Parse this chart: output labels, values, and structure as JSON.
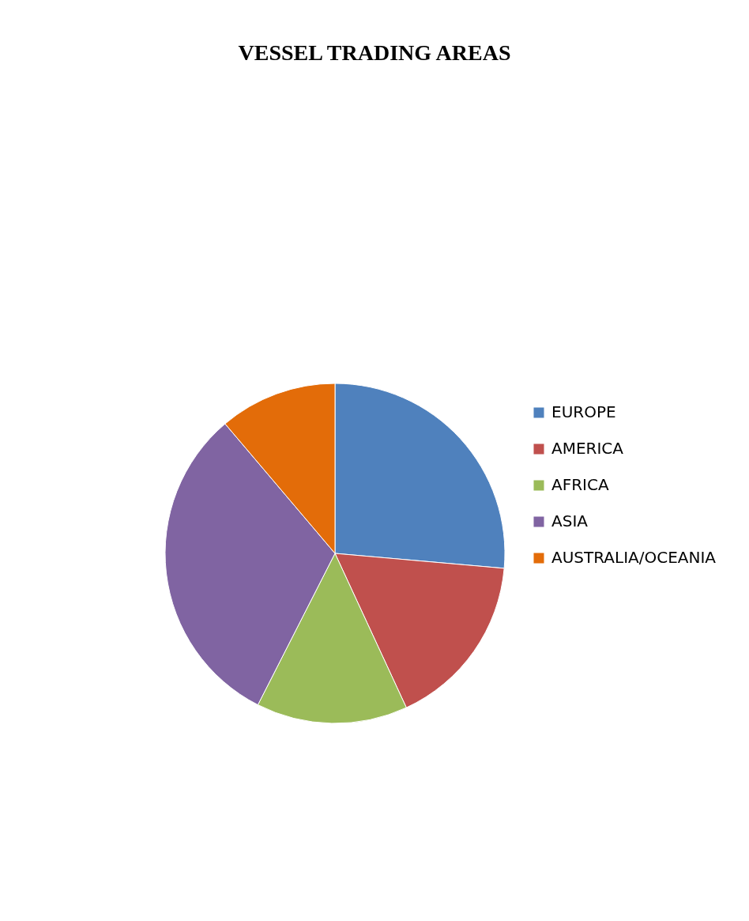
{
  "chart_data": {
    "type": "pie",
    "title": "VESSEL TRADING AREAS",
    "categories": [
      "EUROPE",
      "AMERICA",
      "AFRICA",
      "ASIA",
      "AUSTRALIA/OCEANIA"
    ],
    "values": [
      26.4,
      16.7,
      14.4,
      31.3,
      11.2
    ],
    "colors": [
      "#4f81bd",
      "#c0504d",
      "#9bbb59",
      "#8064a2",
      "#e36c09"
    ],
    "legend": "right"
  }
}
